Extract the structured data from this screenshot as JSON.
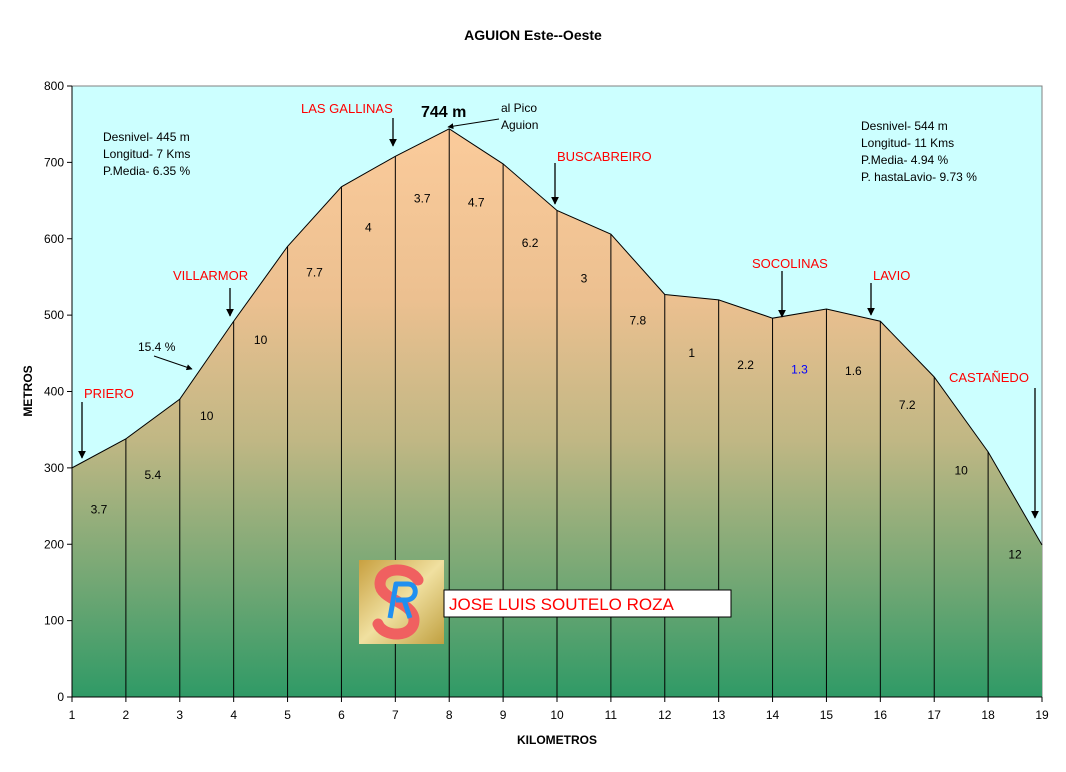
{
  "chart_data": {
    "type": "area",
    "title": "AGUION  Este--Oeste",
    "xlabel": "KILOMETROS",
    "ylabel": "METROS",
    "xlim": [
      1,
      19
    ],
    "ylim": [
      0,
      800
    ],
    "x_ticks": [
      "1",
      "2",
      "3",
      "4",
      "5",
      "6",
      "7",
      "8",
      "9",
      "10",
      "11",
      "12",
      "13",
      "14",
      "15",
      "16",
      "17",
      "18",
      "19"
    ],
    "y_ticks": [
      "0",
      "100",
      "200",
      "300",
      "400",
      "500",
      "600",
      "700",
      "800"
    ],
    "grid": false,
    "x": [
      1,
      2,
      3,
      4,
      5,
      6,
      7,
      8,
      9,
      10,
      11,
      12,
      13,
      14,
      15,
      16,
      17,
      18,
      19
    ],
    "values": [
      300,
      338,
      390,
      492,
      590,
      668,
      708,
      744,
      698,
      637,
      606,
      527,
      520,
      496,
      508,
      492,
      419,
      321,
      199
    ],
    "segment_labels": [
      "3.7",
      "5.4",
      "10",
      "10",
      "7.7",
      "4",
      "3.7",
      "4.7",
      "6.2",
      "3",
      "7.8",
      "1",
      "2.2",
      "1.3",
      "1.6",
      "7.2",
      "10",
      "12"
    ],
    "highlight_segment_color": "#0000ff",
    "highlight_segment_index": 13,
    "places": [
      "PRIERO",
      "VILLARMOR",
      "LAS GALLINAS",
      "BUSCABREIRO",
      "SOCOLINAS",
      "LAVIO",
      "CASTAÑEDO"
    ],
    "peak_label": "744 m",
    "peak_note": [
      "al Pico",
      "Aguion"
    ],
    "grade_note": "15.4 %",
    "left_stats": [
      "Desnivel- 445 m",
      "Longitud- 7 Kms",
      "P.Media- 6.35 %"
    ],
    "right_stats": [
      "Desnivel- 544 m",
      "Longitud- 11 Kms",
      "P.Media- 4.94 %",
      "P. hastaLavio- 9.73 %"
    ],
    "colors": {
      "sky": "#ccffff",
      "fill_top": "#fbcb9b",
      "fill_bottom": "#2f9a66",
      "place": "#ff0000"
    }
  },
  "author": {
    "name": "JOSE LUIS SOUTELO ROZA",
    "logo_text": "SR"
  }
}
